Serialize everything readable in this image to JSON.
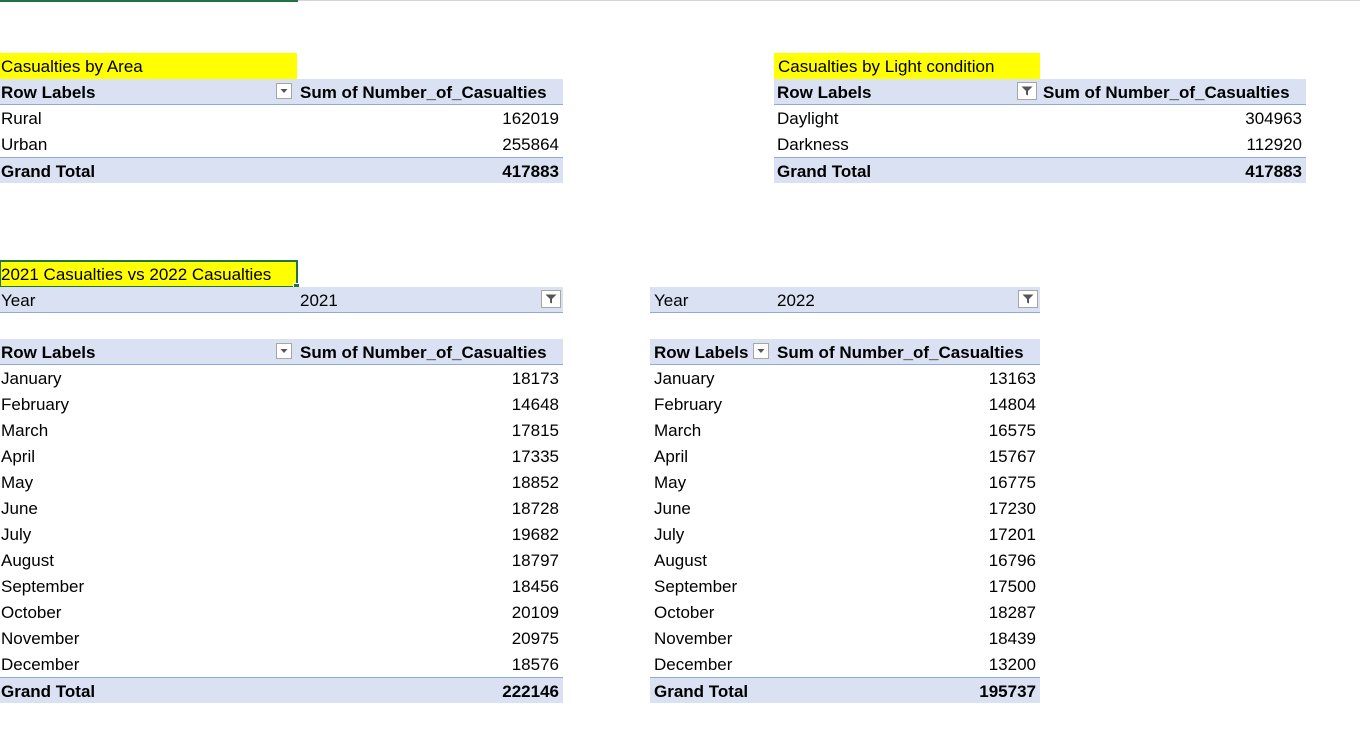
{
  "area_table": {
    "title": "Casualties by Area",
    "header_label": "Row Labels",
    "header_value": "Sum of Number_of_Casualties",
    "rows": [
      {
        "label": "Rural",
        "value": "162019"
      },
      {
        "label": "Urban",
        "value": "255864"
      }
    ],
    "total_label": "Grand Total",
    "total_value": "417883",
    "dropdown_icon": "chevron-down-icon"
  },
  "light_table": {
    "title": "Casualties by  Light condition",
    "header_label": "Row Labels",
    "header_value": "Sum of Number_of_Casualties",
    "rows": [
      {
        "label": "Daylight",
        "value": "304963"
      },
      {
        "label": "Darkness",
        "value": "112920"
      }
    ],
    "total_label": "Grand Total",
    "total_value": "417883",
    "filter_icon": "filter-icon"
  },
  "compare_title": "2021 Casualties vs 2022 Casualties",
  "table_2021": {
    "filter_label": "Year",
    "filter_value": "2021",
    "header_label": "Row Labels",
    "header_value": "Sum of Number_of_Casualties",
    "rows": [
      {
        "label": "January",
        "value": "18173"
      },
      {
        "label": "February",
        "value": "14648"
      },
      {
        "label": "March",
        "value": "17815"
      },
      {
        "label": "April",
        "value": "17335"
      },
      {
        "label": "May",
        "value": "18852"
      },
      {
        "label": "June",
        "value": "18728"
      },
      {
        "label": "July",
        "value": "19682"
      },
      {
        "label": "August",
        "value": "18797"
      },
      {
        "label": "September",
        "value": "18456"
      },
      {
        "label": "October",
        "value": "20109"
      },
      {
        "label": "November",
        "value": "20975"
      },
      {
        "label": "December",
        "value": "18576"
      }
    ],
    "total_label": "Grand Total",
    "total_value": "222146"
  },
  "table_2022": {
    "filter_label": "Year",
    "filter_value": "2022",
    "header_label": "Row Labels",
    "header_value": "Sum of Number_of_Casualties",
    "rows": [
      {
        "label": "January",
        "value": "13163"
      },
      {
        "label": "February",
        "value": "14804"
      },
      {
        "label": "March",
        "value": "16575"
      },
      {
        "label": "April",
        "value": "15767"
      },
      {
        "label": "May",
        "value": "16775"
      },
      {
        "label": "June",
        "value": "17230"
      },
      {
        "label": "July",
        "value": "17201"
      },
      {
        "label": "August",
        "value": "16796"
      },
      {
        "label": "September",
        "value": "17500"
      },
      {
        "label": "October",
        "value": "18287"
      },
      {
        "label": "November",
        "value": "18439"
      },
      {
        "label": "December",
        "value": "13200"
      }
    ],
    "total_label": "Grand Total",
    "total_value": "195737"
  },
  "colors": {
    "title_highlight": "#ffff00",
    "pivot_header": "#d9e1f2",
    "pivot_border": "#8ea9db",
    "selection": "#217346"
  }
}
